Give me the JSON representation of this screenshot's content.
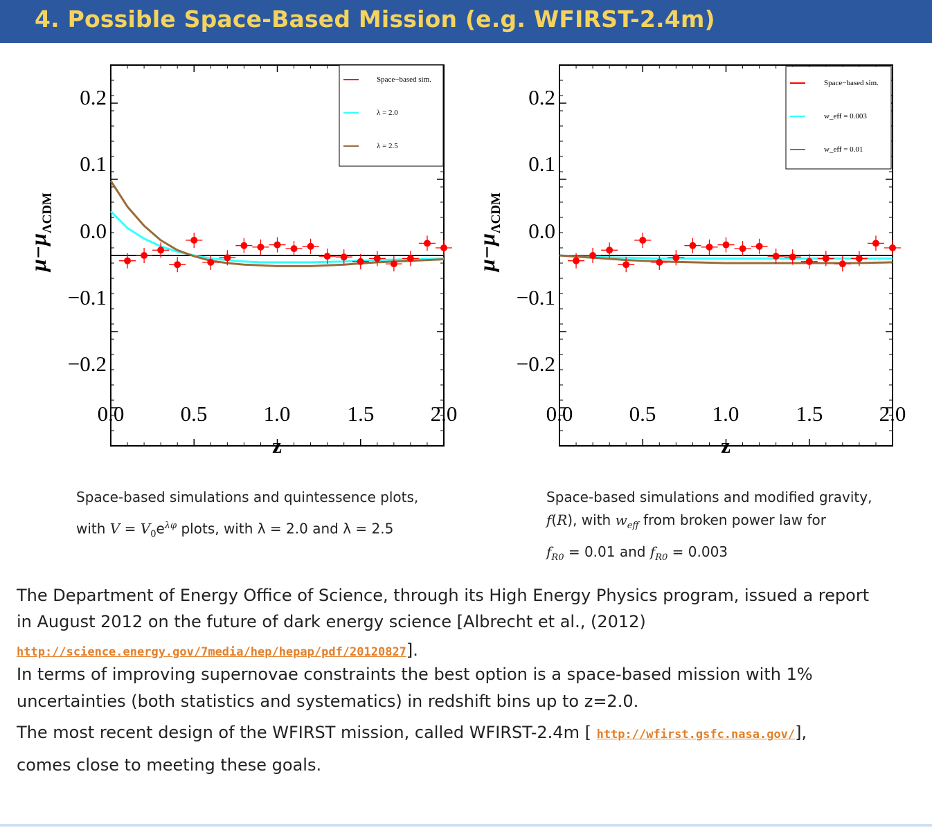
{
  "title": "4.  Possible Space-Based Mission (e.g.  WFIRST-2.4m)",
  "plots": [
    {
      "ylabel_main": "μ−μ",
      "ylabel_sub": "ΛCDM",
      "xlabel": "z",
      "x_ticks": [
        "0.0",
        "0.5",
        "1.0",
        "1.5",
        "2.0"
      ],
      "y_ticks": [
        "0.2",
        "0.1",
        "0.0",
        "−0.1",
        "−0.2"
      ],
      "legend": [
        "Space−based sim.",
        "λ = 2.0",
        "λ = 2.5"
      ]
    },
    {
      "ylabel_main": "μ−μ",
      "ylabel_sub": "ΛCDM",
      "xlabel": "z",
      "x_ticks": [
        "0.0",
        "0.5",
        "1.0",
        "1.5",
        "2.0"
      ],
      "y_ticks": [
        "0.2",
        "0.1",
        "0.0",
        "−0.1",
        "−0.2"
      ],
      "legend": [
        "Space−based sim.",
        "w_eff = 0.003",
        "w_eff = 0.01"
      ]
    }
  ],
  "chart_data": [
    {
      "type": "scatter",
      "xlim": [
        0,
        2
      ],
      "ylim": [
        -0.25,
        0.25
      ],
      "colors": {
        "points": "#ff0000",
        "curve1": "#33ffff",
        "curve2": "#9b6b3a",
        "zero_line": "#000000"
      },
      "points": {
        "x": [
          0.1,
          0.2,
          0.3,
          0.4,
          0.5,
          0.6,
          0.7,
          0.8,
          0.9,
          1.0,
          1.1,
          1.2,
          1.3,
          1.4,
          1.5,
          1.6,
          1.7,
          1.8,
          1.9,
          2.0
        ],
        "y": [
          -0.007,
          0.0,
          0.007,
          -0.012,
          0.02,
          -0.009,
          -0.003,
          0.013,
          0.011,
          0.014,
          0.009,
          0.012,
          -0.001,
          -0.002,
          -0.008,
          -0.004,
          -0.011,
          -0.004,
          0.016,
          0.01
        ],
        "xerr": 0.05,
        "yerr": 0.01
      },
      "series": [
        {
          "x": [
            0.0,
            0.1,
            0.2,
            0.3,
            0.4,
            0.5,
            0.6,
            0.7,
            0.8,
            0.9,
            1.0,
            1.2,
            1.4,
            1.6,
            1.8,
            2.0
          ],
          "y": [
            0.058,
            0.036,
            0.022,
            0.012,
            0.005,
            0.0,
            -0.004,
            -0.006,
            -0.008,
            -0.009,
            -0.009,
            -0.009,
            -0.008,
            -0.006,
            -0.005,
            -0.004
          ]
        },
        {
          "x": [
            0.0,
            0.1,
            0.2,
            0.3,
            0.4,
            0.5,
            0.6,
            0.7,
            0.8,
            0.9,
            1.0,
            1.2,
            1.4,
            1.6,
            1.8,
            2.0
          ],
          "y": [
            0.098,
            0.064,
            0.039,
            0.02,
            0.007,
            -0.001,
            -0.007,
            -0.01,
            -0.012,
            -0.013,
            -0.014,
            -0.014,
            -0.012,
            -0.009,
            -0.007,
            -0.005
          ]
        }
      ]
    },
    {
      "type": "scatter",
      "xlim": [
        0,
        2
      ],
      "ylim": [
        -0.25,
        0.25
      ],
      "colors": {
        "points": "#ff0000",
        "curve1": "#33ffff",
        "curve2": "#9b6b3a",
        "zero_line": "#000000"
      },
      "points": {
        "x": [
          0.1,
          0.2,
          0.3,
          0.4,
          0.5,
          0.6,
          0.7,
          0.8,
          0.9,
          1.0,
          1.1,
          1.2,
          1.3,
          1.4,
          1.5,
          1.6,
          1.7,
          1.8,
          1.9,
          2.0
        ],
        "y": [
          -0.007,
          0.0,
          0.007,
          -0.012,
          0.02,
          -0.009,
          -0.003,
          0.013,
          0.011,
          0.014,
          0.009,
          0.012,
          -0.001,
          -0.002,
          -0.008,
          -0.004,
          -0.011,
          -0.004,
          0.016,
          0.01
        ],
        "xerr": 0.05,
        "yerr": 0.01
      },
      "series": [
        {
          "x": [
            0.0,
            0.2,
            0.4,
            0.6,
            0.8,
            1.0,
            1.2,
            1.4,
            1.6,
            1.8,
            2.0
          ],
          "y": [
            0.0,
            -0.002,
            -0.003,
            -0.004,
            -0.004,
            -0.004,
            -0.004,
            -0.004,
            -0.004,
            -0.004,
            -0.004
          ]
        },
        {
          "x": [
            0.0,
            0.2,
            0.4,
            0.6,
            0.8,
            1.0,
            1.2,
            1.4,
            1.6,
            1.8,
            2.0
          ],
          "y": [
            0.0,
            -0.003,
            -0.006,
            -0.008,
            -0.009,
            -0.01,
            -0.01,
            -0.01,
            -0.01,
            -0.01,
            -0.009
          ]
        }
      ]
    }
  ],
  "captions": {
    "left": {
      "line1": "Space-based simulations and quintessence plots,",
      "line2_a": "with ",
      "line2_b": "V",
      "line2_c": " = ",
      "line2_d": "V",
      "line2_e": "0",
      "line2_f": "e",
      "line2_g": "λφ",
      "line2_h": " plots, with λ = 2.0 and λ = 2.5"
    },
    "right": {
      "line1": "Space-based simulations and modified gravity,",
      "line2_a": "f",
      "line2_b": "(",
      "line2_c": "R",
      "line2_d": "), with ",
      "line2_e": "w",
      "line2_f": "eff",
      "line2_g": " from broken power law for",
      "line3_a": "f",
      "line3_b": "R0",
      "line3_c": " = 0.01 and ",
      "line3_d": "f",
      "line3_e": "R0",
      "line3_f": " = 0.003"
    }
  },
  "body": {
    "p1_line1": "The Department of Energy Office of Science, through its High Energy Physics program, issued a report",
    "p1_line2": "in August 2012 on the future of dark energy science [Albrecht et al., (2012)",
    "p1_url": "http://science.energy.gov/7media/hep/hepap/pdf/20120827",
    "p1_end": "].",
    "p2_line1": "In terms of improving supernovae constraints the best option is a space-based mission with 1%",
    "p2_line2": "uncertainties (both statistics and systematics) in redshift bins up to z=2.0.",
    "p3_line1_a": "The most recent design of the WFIRST mission, called WFIRST-2.4m [ ",
    "p3_url": "http://wfirst.gsfc.nasa.gov/",
    "p3_line1_b": "],",
    "p3_line2": "comes close to meeting these goals."
  }
}
